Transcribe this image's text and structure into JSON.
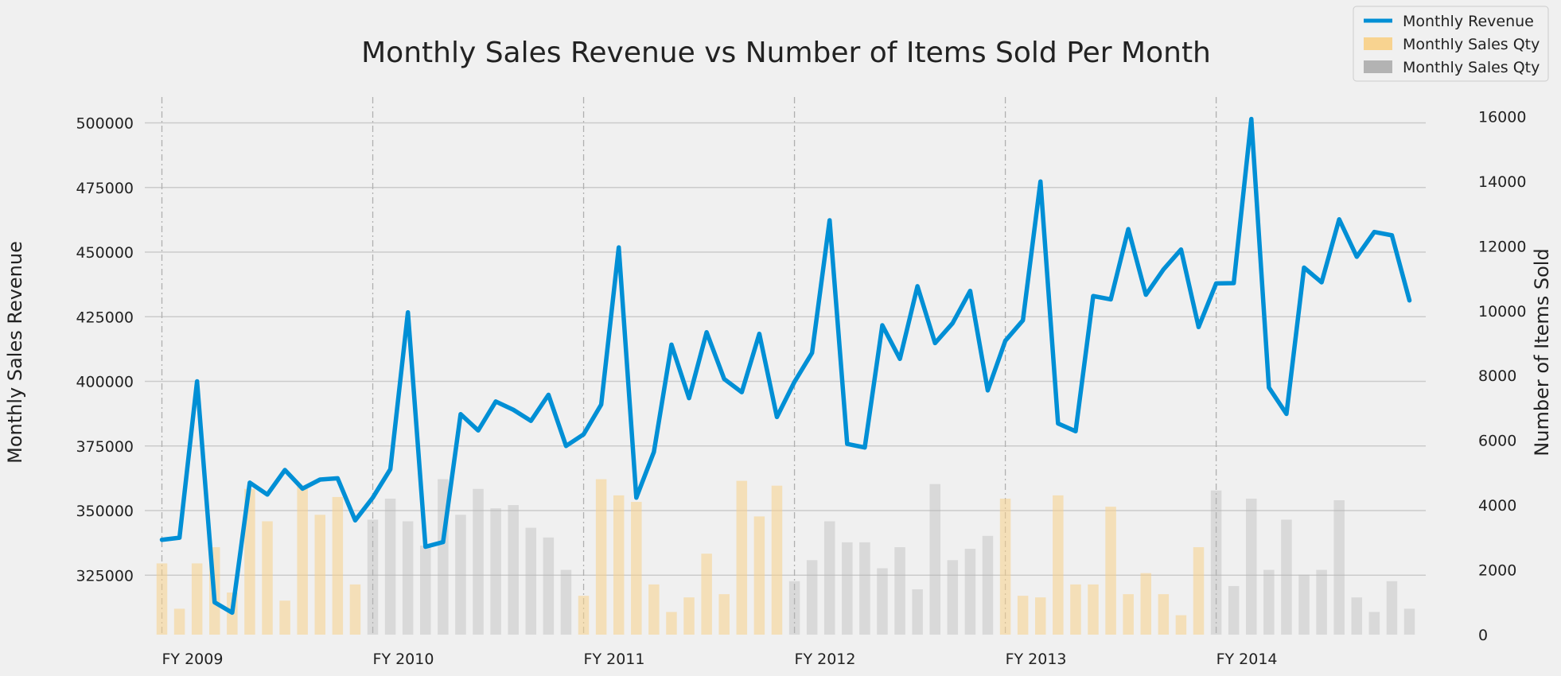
{
  "chart_data": {
    "type": "bar+line",
    "title": "Monthly Sales Revenue vs Number of Items Sold Per Month",
    "ylabel_left": "Monthly Sales Revenue",
    "ylabel_right": "Number of Items Sold",
    "ylim_left": [
      302000,
      510000
    ],
    "ylim_right": [
      0,
      16600
    ],
    "yticks_left": [
      325000,
      350000,
      375000,
      400000,
      425000,
      450000,
      475000,
      500000
    ],
    "yticks_right": [
      0,
      2000,
      4000,
      6000,
      8000,
      10000,
      12000,
      14000,
      16000
    ],
    "grid": true,
    "legend_position": "top-right",
    "fiscal_years": [
      "FY 2009",
      "FY 2010",
      "FY 2011",
      "FY 2012",
      "FY 2013",
      "FY 2014"
    ],
    "months_per_year": 12,
    "series": [
      {
        "name": "Monthly Revenue",
        "kind": "line",
        "axis": "left",
        "color": "#008fd5",
        "values": [
          338700,
          339500,
          400000,
          314500,
          310500,
          360800,
          356200,
          365700,
          358500,
          362000,
          362500,
          346200,
          355000,
          366000,
          426700,
          336000,
          337800,
          387300,
          381000,
          392200,
          389000,
          384700,
          394800,
          375000,
          379500,
          391000,
          451800,
          355000,
          372700,
          414200,
          393500,
          419000,
          400900,
          395800,
          418400,
          386200,
          399800,
          411000,
          462300,
          375800,
          374400,
          421700,
          408700,
          436800,
          414800,
          422500,
          435000,
          396500,
          415700,
          423600,
          477300,
          383700,
          380700,
          433000,
          431700,
          458900,
          433500,
          443300,
          451000,
          421000,
          437900,
          438000,
          501500,
          397600,
          387400,
          444000,
          438300,
          462700,
          448200,
          457800,
          456500,
          431300
        ]
      },
      {
        "name": "Monthly Sales Qty",
        "kind": "bar",
        "axis": "right",
        "color": "#f8d18a",
        "fiscal_year_indices": [
          0,
          2,
          4
        ],
        "values": [
          2200,
          800,
          2200,
          2700,
          1300,
          4500,
          3500,
          1050,
          4600,
          3700,
          4250,
          1550,
          1200,
          4800,
          4300,
          4100,
          1550,
          700,
          1150,
          2500,
          1250,
          4750,
          3650,
          4600,
          4200,
          1200,
          1150,
          4300,
          1550,
          1550,
          3950,
          1250,
          1900,
          1250,
          600,
          2700
        ]
      },
      {
        "name": "Monthly Sales Qty",
        "kind": "bar",
        "axis": "right",
        "color": "#b3b3b3",
        "fiscal_year_indices": [
          1,
          3,
          5
        ],
        "values": [
          3550,
          4200,
          3500,
          2750,
          4800,
          3700,
          4500,
          3900,
          4000,
          3300,
          3000,
          2000,
          1650,
          2300,
          3500,
          2850,
          2850,
          2050,
          2700,
          1400,
          4650,
          2300,
          2650,
          3050,
          4450,
          1500,
          4200,
          2000,
          3550,
          1850,
          2000,
          4150,
          1150,
          700,
          1650,
          800
        ]
      }
    ]
  }
}
